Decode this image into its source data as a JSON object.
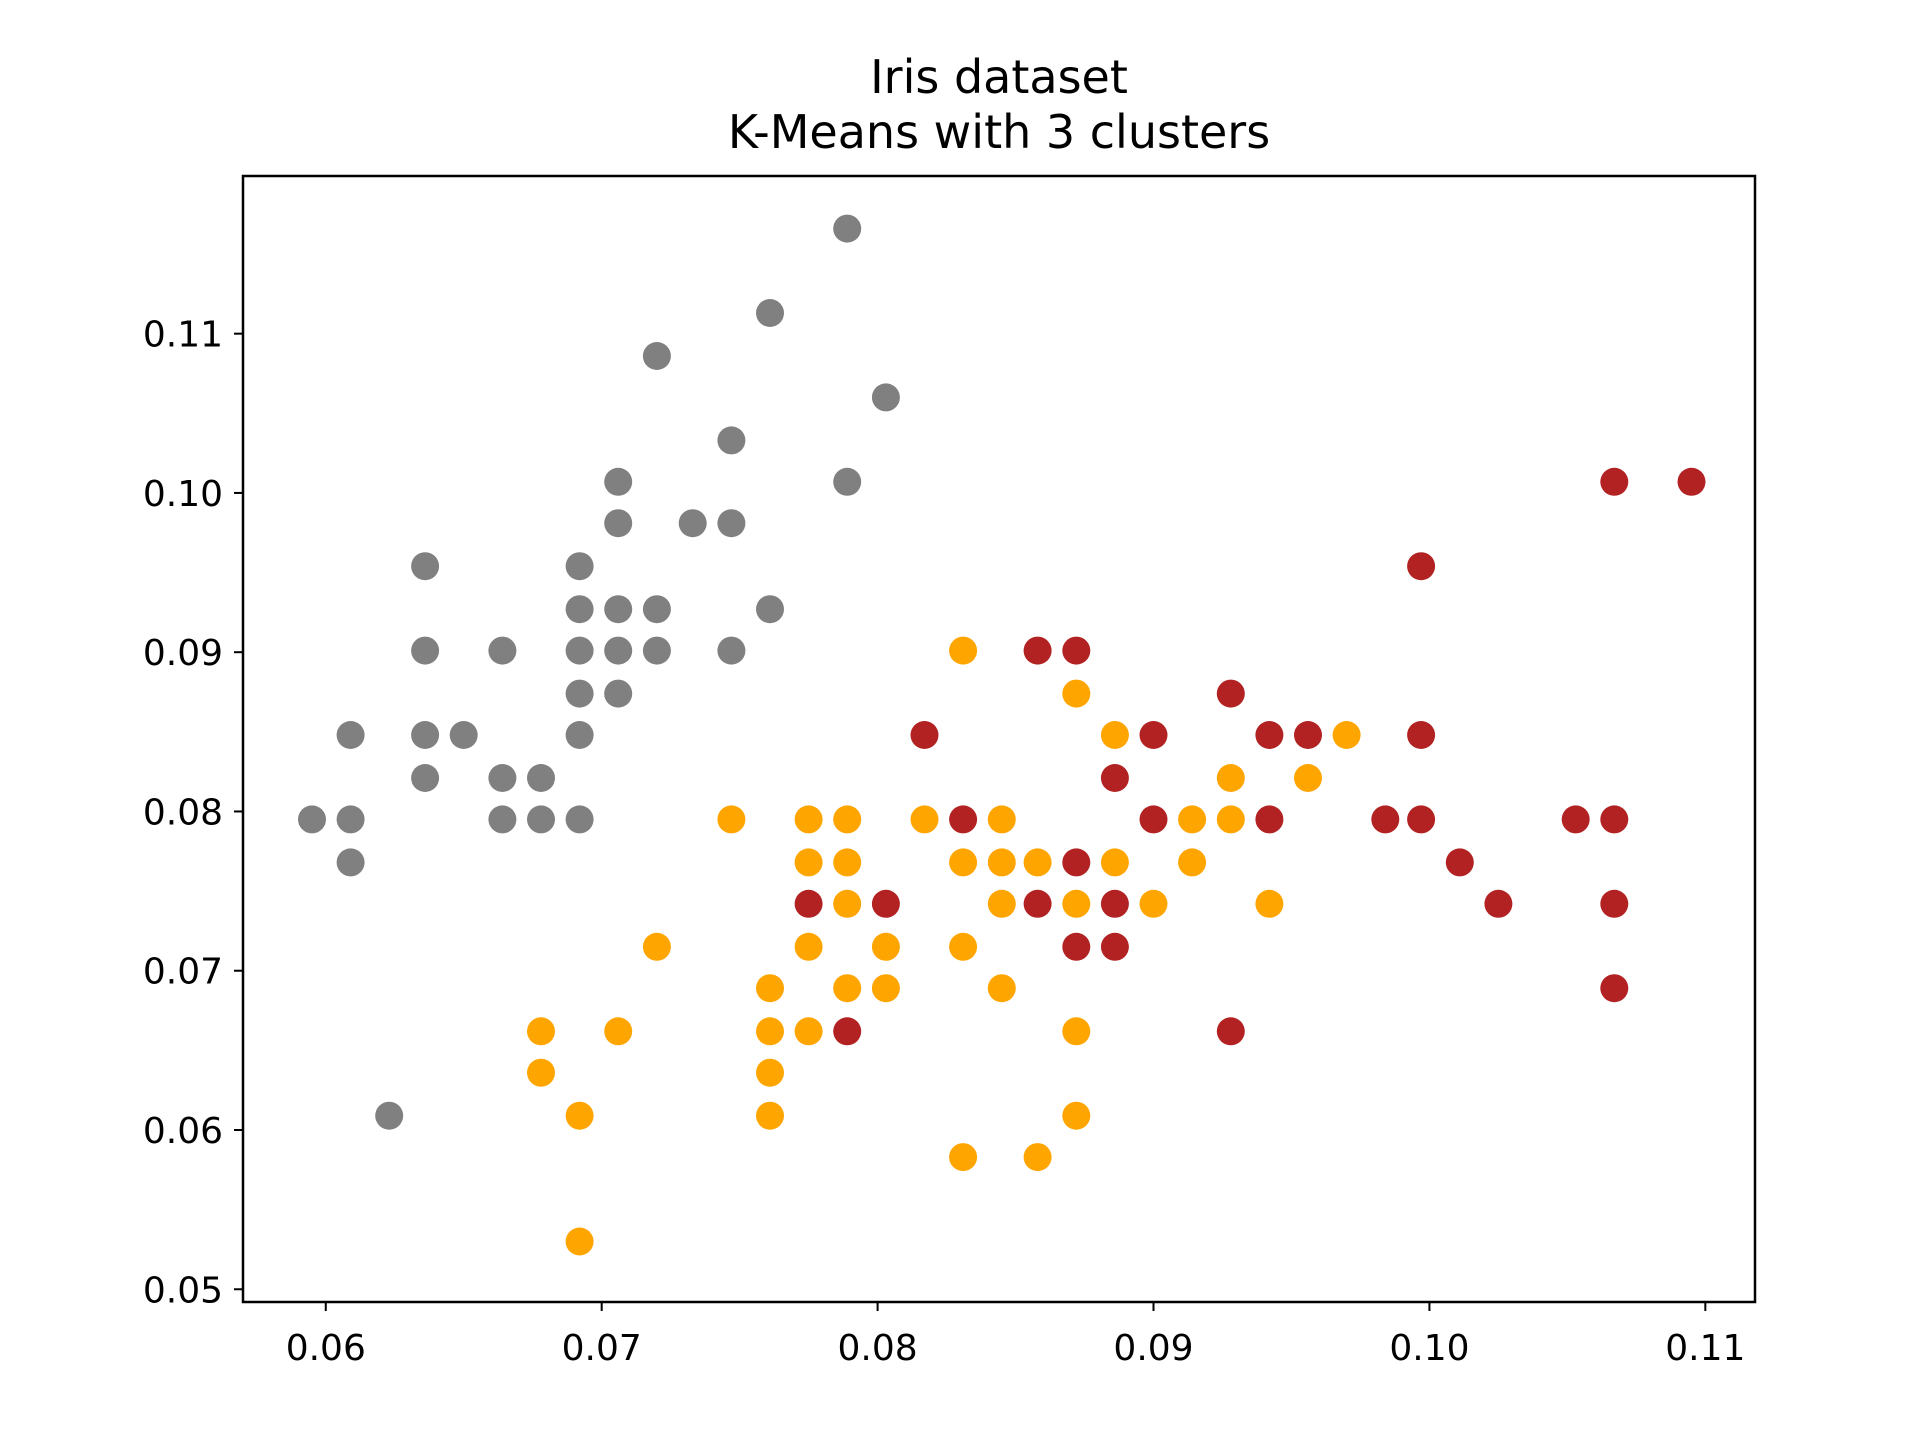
{
  "chart_data": {
    "type": "scatter",
    "title": "Iris dataset",
    "subtitle": "K-Means with 3 clusters",
    "xlabel": "",
    "ylabel": "",
    "xlim": [
      0.057,
      0.1118
    ],
    "ylim": [
      0.0492,
      0.1199
    ],
    "x_ticks": [
      "0.06",
      "0.07",
      "0.08",
      "0.09",
      "0.10",
      "0.11"
    ],
    "y_ticks": [
      "0.05",
      "0.06",
      "0.07",
      "0.08",
      "0.09",
      "0.10",
      "0.11"
    ],
    "grid": false,
    "legend": "none",
    "series": [
      {
        "color": "#808080",
        "points": [
          [
            0.0595,
            0.0795
          ],
          [
            0.0609,
            0.0795
          ],
          [
            0.0609,
            0.0768
          ],
          [
            0.0609,
            0.0848
          ],
          [
            0.0623,
            0.0609
          ],
          [
            0.0636,
            0.0821
          ],
          [
            0.0636,
            0.0848
          ],
          [
            0.0636,
            0.0901
          ],
          [
            0.0636,
            0.0954
          ],
          [
            0.065,
            0.0848
          ],
          [
            0.0664,
            0.0795
          ],
          [
            0.0664,
            0.0821
          ],
          [
            0.0664,
            0.0901
          ],
          [
            0.0678,
            0.0795
          ],
          [
            0.0678,
            0.0821
          ],
          [
            0.0692,
            0.0795
          ],
          [
            0.0692,
            0.0848
          ],
          [
            0.0692,
            0.0874
          ],
          [
            0.0692,
            0.0901
          ],
          [
            0.0692,
            0.0927
          ],
          [
            0.0692,
            0.0954
          ],
          [
            0.0706,
            0.0874
          ],
          [
            0.0706,
            0.0901
          ],
          [
            0.0706,
            0.0927
          ],
          [
            0.0706,
            0.0981
          ],
          [
            0.0706,
            0.1007
          ],
          [
            0.072,
            0.0901
          ],
          [
            0.072,
            0.0927
          ],
          [
            0.072,
            0.1086
          ],
          [
            0.0733,
            0.0981
          ],
          [
            0.0747,
            0.0901
          ],
          [
            0.0747,
            0.0981
          ],
          [
            0.0747,
            0.1033
          ],
          [
            0.0761,
            0.0927
          ],
          [
            0.0761,
            0.1113
          ],
          [
            0.0789,
            0.1007
          ],
          [
            0.0789,
            0.1166
          ],
          [
            0.0803,
            0.106
          ]
        ]
      },
      {
        "color": "#ffa500",
        "points": [
          [
            0.0678,
            0.0636
          ],
          [
            0.0678,
            0.0662
          ],
          [
            0.0692,
            0.053
          ],
          [
            0.0692,
            0.0609
          ],
          [
            0.0706,
            0.0662
          ],
          [
            0.072,
            0.0715
          ],
          [
            0.0747,
            0.0795
          ],
          [
            0.0761,
            0.0609
          ],
          [
            0.0761,
            0.0636
          ],
          [
            0.0761,
            0.0662
          ],
          [
            0.0761,
            0.0689
          ],
          [
            0.0775,
            0.0662
          ],
          [
            0.0775,
            0.0715
          ],
          [
            0.0775,
            0.0768
          ],
          [
            0.0775,
            0.0795
          ],
          [
            0.0789,
            0.0689
          ],
          [
            0.0789,
            0.0742
          ],
          [
            0.0789,
            0.0768
          ],
          [
            0.0789,
            0.0795
          ],
          [
            0.0803,
            0.0689
          ],
          [
            0.0803,
            0.0715
          ],
          [
            0.0817,
            0.0795
          ],
          [
            0.0831,
            0.0583
          ],
          [
            0.0831,
            0.0715
          ],
          [
            0.0831,
            0.0768
          ],
          [
            0.0831,
            0.0901
          ],
          [
            0.0845,
            0.0689
          ],
          [
            0.0845,
            0.0742
          ],
          [
            0.0845,
            0.0768
          ],
          [
            0.0845,
            0.0795
          ],
          [
            0.0858,
            0.0583
          ],
          [
            0.0858,
            0.0768
          ],
          [
            0.0872,
            0.0609
          ],
          [
            0.0872,
            0.0662
          ],
          [
            0.0872,
            0.0742
          ],
          [
            0.0872,
            0.0874
          ],
          [
            0.0886,
            0.0768
          ],
          [
            0.0886,
            0.0848
          ],
          [
            0.09,
            0.0742
          ],
          [
            0.0914,
            0.0768
          ],
          [
            0.0914,
            0.0795
          ],
          [
            0.0928,
            0.0795
          ],
          [
            0.0928,
            0.0821
          ],
          [
            0.0942,
            0.0742
          ],
          [
            0.0956,
            0.0821
          ],
          [
            0.097,
            0.0848
          ]
        ]
      },
      {
        "color": "#b22222",
        "points": [
          [
            0.0775,
            0.0742
          ],
          [
            0.0789,
            0.0662
          ],
          [
            0.0803,
            0.0742
          ],
          [
            0.0817,
            0.0848
          ],
          [
            0.0831,
            0.0795
          ],
          [
            0.0858,
            0.0742
          ],
          [
            0.0858,
            0.0901
          ],
          [
            0.0872,
            0.0715
          ],
          [
            0.0872,
            0.0768
          ],
          [
            0.0872,
            0.0901
          ],
          [
            0.0886,
            0.0715
          ],
          [
            0.0886,
            0.0742
          ],
          [
            0.0886,
            0.0821
          ],
          [
            0.09,
            0.0795
          ],
          [
            0.09,
            0.0848
          ],
          [
            0.0928,
            0.0662
          ],
          [
            0.0928,
            0.0874
          ],
          [
            0.0942,
            0.0795
          ],
          [
            0.0942,
            0.0848
          ],
          [
            0.0956,
            0.0848
          ],
          [
            0.0984,
            0.0795
          ],
          [
            0.0997,
            0.0795
          ],
          [
            0.0997,
            0.0848
          ],
          [
            0.0997,
            0.0954
          ],
          [
            0.1011,
            0.0768
          ],
          [
            0.1025,
            0.0742
          ],
          [
            0.1053,
            0.0795
          ],
          [
            0.1067,
            0.0689
          ],
          [
            0.1067,
            0.0742
          ],
          [
            0.1067,
            0.0795
          ],
          [
            0.1067,
            0.1007
          ],
          [
            0.1095,
            0.1007
          ]
        ]
      }
    ]
  }
}
